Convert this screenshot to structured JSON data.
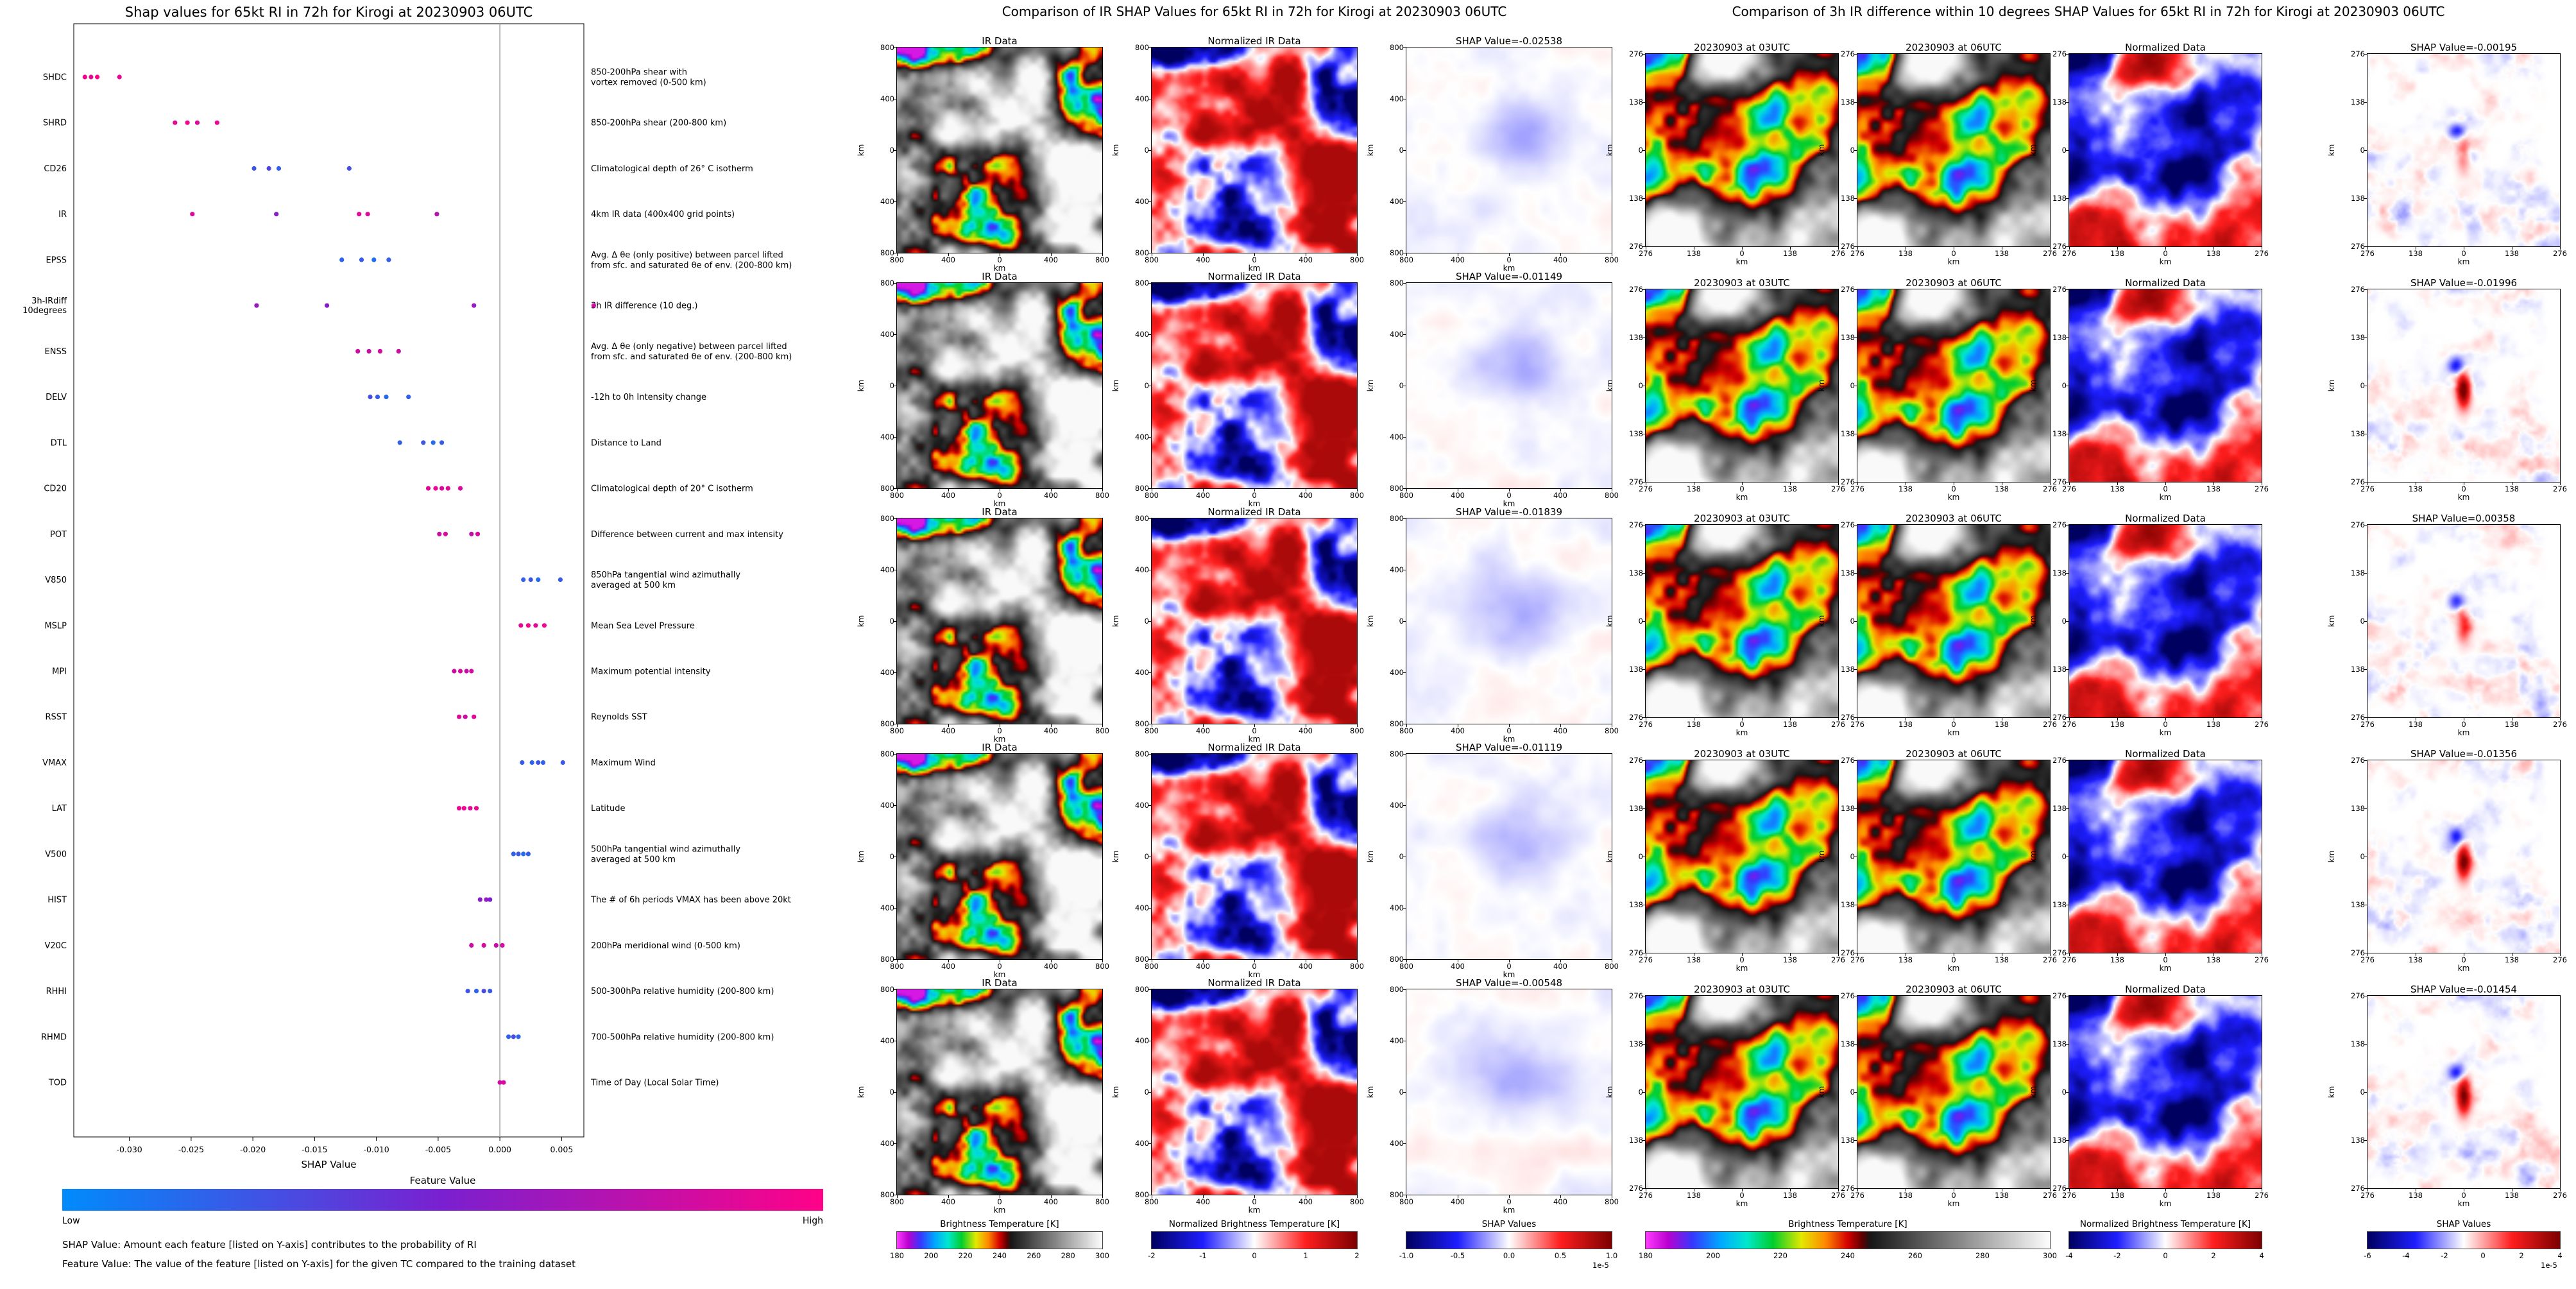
{
  "chart_data": [
    {
      "type": "scatter",
      "id": "shap-beeswarm",
      "title": "Shap values for 65kt RI in 72h for Kirogi at 20230903 06UTC",
      "xlabel": "SHAP Value",
      "xlim": [
        -0.0345,
        0.0068
      ],
      "x_ticks": [
        -0.03,
        -0.025,
        -0.02,
        -0.015,
        -0.01,
        -0.005,
        0.0,
        0.005
      ],
      "x_tick_labels": [
        "-0.030",
        "-0.025",
        "-0.020",
        "-0.015",
        "-0.010",
        "-0.005",
        "0.000",
        "0.005"
      ],
      "grid": false,
      "legend_position": "none",
      "colorbar": {
        "title": "Feature Value",
        "low_label": "Low",
        "high_label": "High",
        "colors": [
          "#008bfb",
          "#7a20d0",
          "#ff0287"
        ]
      },
      "footnotes": [
        "SHAP Value: Amount each feature [listed on Y-axis] contributes to the probability of RI",
        "Feature Value: The value of the feature [listed on Y-axis] for the given TC compared to the training dataset"
      ],
      "features": [
        {
          "label_lines": [
            "SHDC"
          ],
          "desc_lines": [
            "850-200hPa shear with",
            "vortex removed (0-500 km)"
          ],
          "points": [
            [
              -0.0336,
              0.95
            ],
            [
              -0.0331,
              0.9
            ],
            [
              -0.0326,
              0.98
            ],
            [
              -0.0308,
              0.92
            ]
          ]
        },
        {
          "label_lines": [
            "SHRD"
          ],
          "desc_lines": [
            "850-200hPa shear (200-800 km)"
          ],
          "points": [
            [
              -0.0263,
              0.9
            ],
            [
              -0.0253,
              0.95
            ],
            [
              -0.0245,
              0.88
            ],
            [
              -0.0229,
              0.93
            ]
          ]
        },
        {
          "label_lines": [
            "CD26"
          ],
          "desc_lines": [
            "Climatological depth of 26° C isotherm"
          ],
          "points": [
            [
              -0.0199,
              0.25
            ],
            [
              -0.0187,
              0.32
            ],
            [
              -0.0179,
              0.2
            ],
            [
              -0.0122,
              0.28
            ]
          ]
        },
        {
          "label_lines": [
            "IR"
          ],
          "desc_lines": [
            "4km IR data (400x400 grid points)"
          ],
          "points": [
            [
              -0.0249,
              0.85
            ],
            [
              -0.0181,
              0.55
            ],
            [
              -0.0114,
              0.9
            ],
            [
              -0.0107,
              0.88
            ],
            [
              -0.0051,
              0.72
            ]
          ]
        },
        {
          "label_lines": [
            "EPSS"
          ],
          "desc_lines": [
            "Avg. Δ θe (only positive) between parcel lifted",
            "from sfc. and saturated θe of env. (200-800 km)"
          ],
          "points": [
            [
              -0.0128,
              0.18
            ],
            [
              -0.0112,
              0.22
            ],
            [
              -0.0102,
              0.12
            ],
            [
              -0.009,
              0.2
            ]
          ]
        },
        {
          "label_lines": [
            "3h-IRdiff",
            "10degrees"
          ],
          "desc_lines": [
            "3h IR difference (10 deg.)"
          ],
          "points": [
            [
              -0.0197,
              0.6
            ],
            [
              -0.014,
              0.55
            ],
            [
              -0.0021,
              0.62
            ],
            [
              0.0076,
              0.82
            ]
          ]
        },
        {
          "label_lines": [
            "ENSS"
          ],
          "desc_lines": [
            "Avg. Δ θe (only negative) between parcel lifted",
            "from sfc. and saturated θe of env. (200-800 km)"
          ],
          "points": [
            [
              -0.0115,
              0.82
            ],
            [
              -0.0106,
              0.78
            ],
            [
              -0.0097,
              0.85
            ],
            [
              -0.0082,
              0.8
            ]
          ]
        },
        {
          "label_lines": [
            "DELV"
          ],
          "desc_lines": [
            "-12h to 0h Intensity change"
          ],
          "points": [
            [
              -0.0105,
              0.28
            ],
            [
              -0.0099,
              0.22
            ],
            [
              -0.0092,
              0.15
            ],
            [
              -0.0074,
              0.2
            ]
          ]
        },
        {
          "label_lines": [
            "DTL"
          ],
          "desc_lines": [
            "Distance to Land"
          ],
          "points": [
            [
              -0.0081,
              0.2
            ],
            [
              -0.0062,
              0.25
            ],
            [
              -0.0054,
              0.15
            ],
            [
              -0.0047,
              0.22
            ]
          ]
        },
        {
          "label_lines": [
            "CD20"
          ],
          "desc_lines": [
            "Climatological depth of 20° C isotherm"
          ],
          "points": [
            [
              -0.0058,
              0.88
            ],
            [
              -0.0052,
              0.92
            ],
            [
              -0.0047,
              0.85
            ],
            [
              -0.0042,
              0.9
            ],
            [
              -0.0032,
              0.86
            ]
          ]
        },
        {
          "label_lines": [
            "POT"
          ],
          "desc_lines": [
            "Difference between current and max intensity"
          ],
          "points": [
            [
              -0.0049,
              0.8
            ],
            [
              -0.0044,
              0.86
            ],
            [
              -0.0023,
              0.78
            ],
            [
              -0.0018,
              0.83
            ]
          ]
        },
        {
          "label_lines": [
            "V850"
          ],
          "desc_lines": [
            "850hPa tangential wind azimuthally",
            "averaged at 500 km"
          ],
          "points": [
            [
              0.0019,
              0.2
            ],
            [
              0.0025,
              0.25
            ],
            [
              0.0031,
              0.15
            ],
            [
              0.0049,
              0.22
            ]
          ]
        },
        {
          "label_lines": [
            "MSLP"
          ],
          "desc_lines": [
            "Mean Sea Level Pressure"
          ],
          "points": [
            [
              0.0017,
              0.9
            ],
            [
              0.0023,
              0.96
            ],
            [
              0.0029,
              0.88
            ],
            [
              0.0036,
              0.93
            ]
          ]
        },
        {
          "label_lines": [
            "MPI"
          ],
          "desc_lines": [
            "Maximum potential intensity"
          ],
          "points": [
            [
              -0.0037,
              0.8
            ],
            [
              -0.0032,
              0.85
            ],
            [
              -0.0027,
              0.78
            ],
            [
              -0.0023,
              0.83
            ]
          ]
        },
        {
          "label_lines": [
            "RSST"
          ],
          "desc_lines": [
            "Reynolds SST"
          ],
          "points": [
            [
              -0.0033,
              0.86
            ],
            [
              -0.0028,
              0.8
            ],
            [
              -0.0021,
              0.9
            ]
          ]
        },
        {
          "label_lines": [
            "VMAX"
          ],
          "desc_lines": [
            "Maximum Wind"
          ],
          "points": [
            [
              0.0018,
              0.22
            ],
            [
              0.0026,
              0.18
            ],
            [
              0.0031,
              0.25
            ],
            [
              0.0035,
              0.2
            ],
            [
              0.0051,
              0.24
            ]
          ]
        },
        {
          "label_lines": [
            "LAT"
          ],
          "desc_lines": [
            "Latitude"
          ],
          "points": [
            [
              -0.0033,
              0.92
            ],
            [
              -0.0029,
              0.96
            ],
            [
              -0.0024,
              0.88
            ],
            [
              -0.0019,
              0.93
            ]
          ]
        },
        {
          "label_lines": [
            "V500"
          ],
          "desc_lines": [
            "500hPa tangential wind azimuthally",
            "averaged at 500 km"
          ],
          "points": [
            [
              0.0011,
              0.2
            ],
            [
              0.0015,
              0.25
            ],
            [
              0.0019,
              0.15
            ],
            [
              0.0023,
              0.22
            ]
          ]
        },
        {
          "label_lines": [
            "HIST"
          ],
          "desc_lines": [
            "The # of 6h periods VMAX has been above 20kt"
          ],
          "points": [
            [
              -0.0016,
              0.55
            ],
            [
              -0.0011,
              0.6
            ],
            [
              -0.0008,
              0.5
            ]
          ]
        },
        {
          "label_lines": [
            "V20C"
          ],
          "desc_lines": [
            "200hPa meridional wind (0-500 km)"
          ],
          "points": [
            [
              -0.0023,
              0.8
            ],
            [
              -0.0013,
              0.85
            ],
            [
              -0.0003,
              0.78
            ],
            [
              0.0002,
              0.83
            ]
          ]
        },
        {
          "label_lines": [
            "RHHI"
          ],
          "desc_lines": [
            "500-300hPa relative humidity (200-800 km)"
          ],
          "points": [
            [
              -0.0026,
              0.25
            ],
            [
              -0.0019,
              0.2
            ],
            [
              -0.0013,
              0.3
            ],
            [
              -0.0008,
              0.22
            ]
          ]
        },
        {
          "label_lines": [
            "RHMD"
          ],
          "desc_lines": [
            "700-500hPa relative humidity (200-800 km)"
          ],
          "points": [
            [
              0.0007,
              0.2
            ],
            [
              0.0011,
              0.28
            ],
            [
              0.0015,
              0.18
            ]
          ]
        },
        {
          "label_lines": [
            "TOD"
          ],
          "desc_lines": [
            "Time of Day (Local Solar Time)"
          ],
          "points": [
            [
              0.0,
              0.8
            ],
            [
              0.0003,
              0.85
            ]
          ]
        }
      ]
    },
    {
      "type": "heatmap",
      "id": "ir-shap-grid",
      "title": "Comparison of IR SHAP Values for 65kt RI in 72h for Kirogi at 20230903 06UTC",
      "columns": [
        {
          "title": "IR Data",
          "style": "ir",
          "name": "ir-data-map"
        },
        {
          "title": "Normalized IR Data",
          "style": "norm",
          "name": "normalized-ir-data-map"
        },
        {
          "style": "shap",
          "name": "shap-value-map"
        }
      ],
      "rows": [
        {
          "shap_value": -0.02538,
          "shap_title": "SHAP Value=-0.02538"
        },
        {
          "shap_value": -0.01149,
          "shap_title": "SHAP Value=-0.01149"
        },
        {
          "shap_value": -0.01839,
          "shap_title": "SHAP Value=-0.01839"
        },
        {
          "shap_value": -0.01119,
          "shap_title": "SHAP Value=-0.01119"
        },
        {
          "shap_value": -0.00548,
          "shap_title": "SHAP Value=-0.00548"
        }
      ],
      "axis": {
        "tick_labels": [
          "800",
          "400",
          "0",
          "400",
          "800"
        ],
        "unit": "km",
        "extent_km": 800
      },
      "colorbars": [
        {
          "label": "Brightness Temperature [K]",
          "style": "ir",
          "ticks": [
            "180",
            "200",
            "220",
            "240",
            "260",
            "280",
            "300"
          ]
        },
        {
          "label": "Normalized Brightness Temperature [K]",
          "style": "seismic",
          "ticks": [
            "-2",
            "-1",
            "0",
            "1",
            "2"
          ]
        },
        {
          "label": "SHAP Values",
          "style": "seismic",
          "ticks": [
            "-1.0",
            "-0.5",
            "0.0",
            "0.5",
            "1.0"
          ],
          "exponent": "1e-5"
        }
      ]
    },
    {
      "type": "heatmap",
      "id": "irdiff-shap-grid",
      "title": "Comparison of 3h IR difference within 10 degrees SHAP Values for 65kt RI in 72h for Kirogi at 20230903 06UTC",
      "columns": [
        {
          "title": "20230903 at 03UTC",
          "style": "ir2",
          "name": "ir-03utc-map"
        },
        {
          "title": "20230903 at 06UTC",
          "style": "ir2b",
          "name": "ir-06utc-map"
        },
        {
          "title": "Normalized Data",
          "style": "norm2",
          "name": "normalized-diff-map"
        },
        {
          "style": "shap2",
          "name": "shap-diff-map"
        }
      ],
      "rows": [
        {
          "shap_value": -0.00195,
          "shap_title": "SHAP Value=-0.00195"
        },
        {
          "shap_value": -0.01996,
          "shap_title": "SHAP Value=-0.01996"
        },
        {
          "shap_value": 0.00358,
          "shap_title": "SHAP Value=0.00358"
        },
        {
          "shap_value": -0.01356,
          "shap_title": "SHAP Value=-0.01356"
        },
        {
          "shap_value": -0.01454,
          "shap_title": "SHAP Value=-0.01454"
        }
      ],
      "axis": {
        "tick_labels": [
          "276",
          "138",
          "0",
          "138",
          "276"
        ],
        "unit": "km",
        "extent_km": 276
      },
      "colorbars": [
        {
          "label": "Brightness Temperature [K]",
          "style": "ir",
          "ticks": [
            "180",
            "200",
            "220",
            "240",
            "260",
            "280",
            "300"
          ]
        },
        {
          "label": "Normalized Brightness Temperature [K]",
          "style": "seismic",
          "ticks": [
            "-4",
            "-2",
            "0",
            "2",
            "4"
          ]
        },
        {
          "label": "SHAP Values",
          "style": "seismic",
          "ticks": [
            "-6",
            "-4",
            "-2",
            "0",
            "2",
            "4"
          ],
          "exponent": "1e-5"
        }
      ]
    }
  ]
}
